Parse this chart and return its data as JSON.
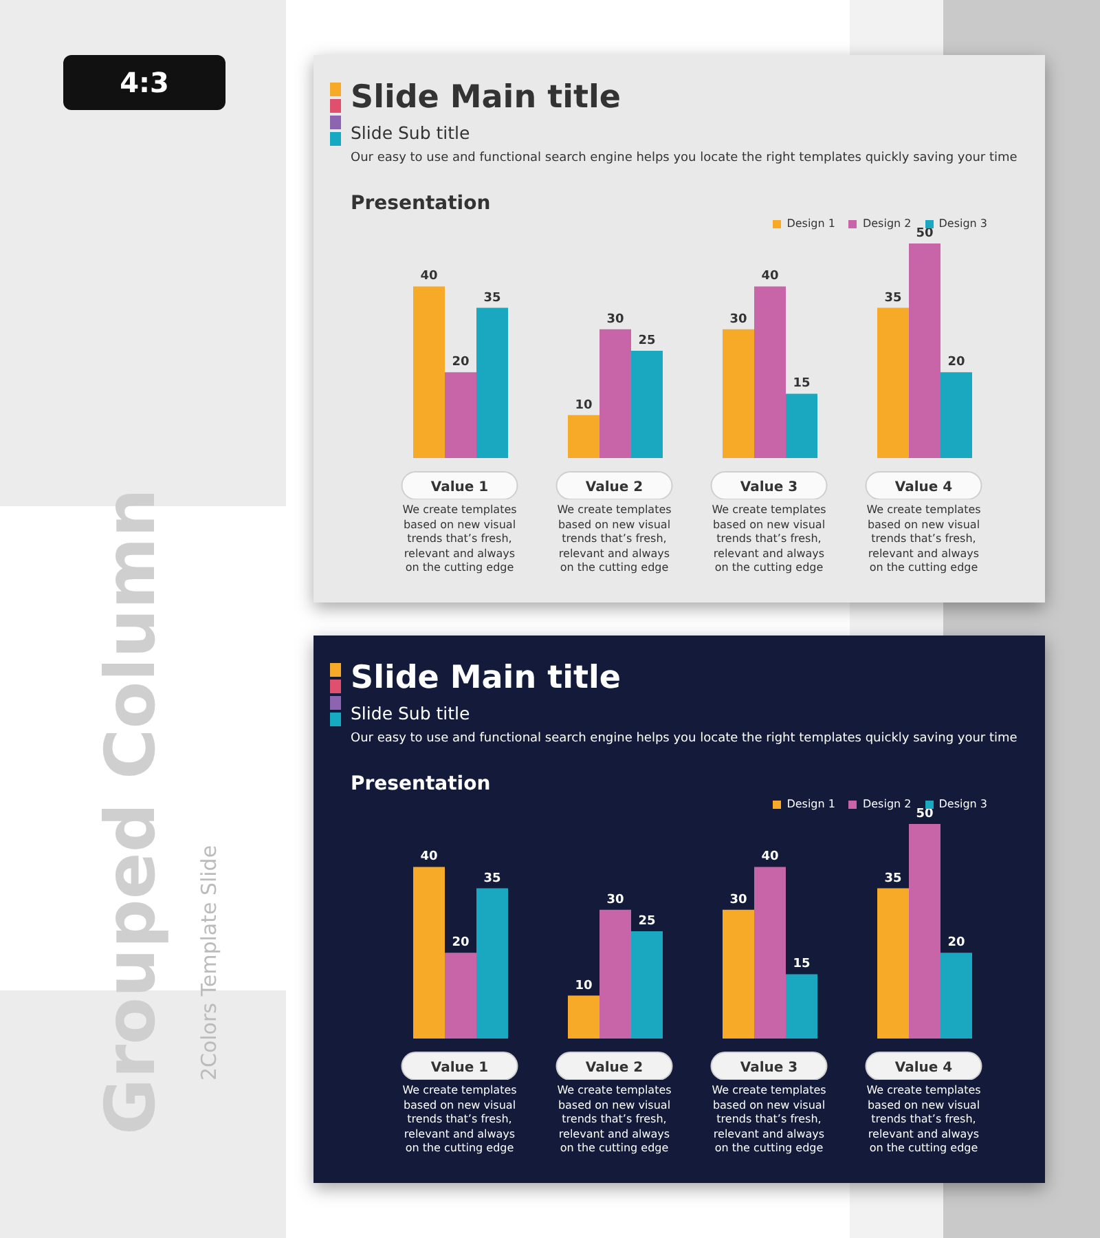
{
  "chart_data": [
    {
      "type": "other",
      "title": "Grouped Column",
      "subtitle": "2Colors Template Slide",
      "annotations": [
        "4:3"
      ]
    },
    {
      "type": "bar",
      "title": "Slide Main title",
      "subtitle": "Slide Sub title",
      "categories": [
        "Value 1",
        "Value 2",
        "Value 3",
        "Value 4"
      ],
      "series": [
        {
          "name": "Design 1",
          "color": "#f7a928",
          "values": [
            40,
            10,
            30,
            35
          ]
        },
        {
          "name": "Design 2",
          "color": "#c865a8",
          "values": [
            20,
            30,
            40,
            50
          ]
        },
        {
          "name": "Design 3",
          "color": "#1aa7c0",
          "values": [
            35,
            25,
            15,
            20
          ]
        }
      ],
      "data_labels": true,
      "legend": "top right",
      "annotations": [
        "Our easy to use and functional search engine helps you locate the right templates quickly saving your time",
        "Presentation",
        "We create templates based on new visual trends that’s fresh, relevant and always on the cutting edge",
        "We create templates based on new visual trends that’s fresh, relevant and always on the cutting edge",
        "We create templates based on new visual trends that’s fresh, relevant and always on the cutting edge",
        "We create templates based on new visual trends that’s fresh, relevant and always on the cutting edge"
      ]
    },
    {
      "type": "bar",
      "title": "Slide Main title",
      "subtitle": "Slide Sub title",
      "categories": [
        "Value 1",
        "Value 2",
        "Value 3",
        "Value 4"
      ],
      "series": [
        {
          "name": "Design 1",
          "color": "#f7a928",
          "values": [
            40,
            10,
            30,
            35
          ]
        },
        {
          "name": "Design 2",
          "color": "#c865a8",
          "values": [
            20,
            30,
            40,
            50
          ]
        },
        {
          "name": "Design 3",
          "color": "#1aa7c0",
          "values": [
            35,
            25,
            15,
            20
          ]
        }
      ],
      "data_labels": true,
      "legend": "top right",
      "annotations": [
        "Our easy to use and functional search engine helps you locate the right templates quickly saving your time",
        "Presentation",
        "We create templates based on new visual trends that’s fresh, relevant and always on the cutting edge",
        "We create templates based on new visual trends that’s fresh, relevant and always on the cutting edge",
        "We create templates based on new visual trends that’s fresh, relevant and always on the cutting edge",
        "We create templates based on new visual trends that’s fresh, relevant and always on the cutting edge"
      ]
    }
  ]
}
